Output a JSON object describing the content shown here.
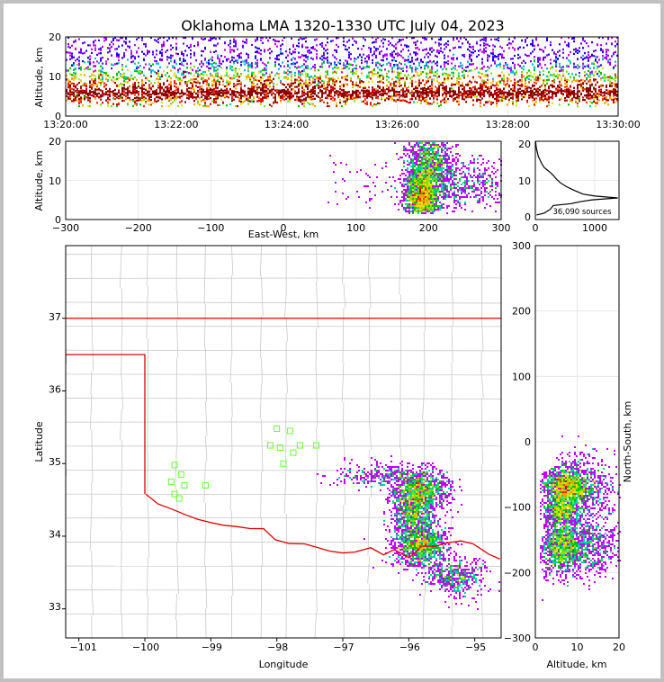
{
  "title": "Oklahoma LMA 1320-1330 UTC July 04, 2023",
  "chart_data": [
    {
      "type": "heatmap",
      "name": "time-altitude",
      "ylabel": "Altitude, km",
      "xlabel": "",
      "x_ticks": [
        "13:20:00",
        "13:22:00",
        "13:24:00",
        "13:26:00",
        "13:28:00",
        "13:30:00"
      ],
      "y_ticks": [
        "0",
        "10",
        "20"
      ],
      "xlim": [
        "13:20:00",
        "13:30:00"
      ],
      "ylim": [
        0,
        20
      ],
      "grid": true
    },
    {
      "type": "heatmap",
      "name": "east-west-altitude",
      "xlabel": "East-West, km",
      "ylabel": "Altitude, km",
      "x_ticks": [
        "−300",
        "−200",
        "−100",
        "0",
        "100",
        "200",
        "300"
      ],
      "y_ticks": [
        "0",
        "10",
        "20"
      ],
      "xlim": [
        -300,
        300
      ],
      "ylim": [
        0,
        20
      ],
      "grid": true,
      "cores": [
        {
          "x": 190,
          "z": 6,
          "sx": 12,
          "sz": 3.5,
          "n": 1700
        },
        {
          "x": 200,
          "z": 15,
          "sx": 16,
          "sz": 3.5,
          "n": 900
        },
        {
          "x": 245,
          "z": 9,
          "sx": 35,
          "sz": 3,
          "n": 500
        }
      ]
    },
    {
      "type": "line",
      "name": "altitude-histogram",
      "x_ticks": [
        "0",
        "1000"
      ],
      "y_ticks": [
        "0",
        "10",
        "20"
      ],
      "xlim": [
        0,
        1400
      ],
      "ylim": [
        0,
        20
      ],
      "annotation": "36,090 sources",
      "profile": [
        [
          0.5,
          20
        ],
        [
          1,
          150
        ],
        [
          2,
          250
        ],
        [
          3,
          300
        ],
        [
          3.5,
          600
        ],
        [
          4,
          750
        ],
        [
          4.5,
          950
        ],
        [
          5,
          1380
        ],
        [
          5.5,
          1000
        ],
        [
          6,
          800
        ],
        [
          7,
          650
        ],
        [
          8,
          520
        ],
        [
          9,
          420
        ],
        [
          10,
          350
        ],
        [
          11,
          300
        ],
        [
          12,
          230
        ],
        [
          13,
          150
        ],
        [
          14,
          110
        ],
        [
          15,
          80
        ],
        [
          16,
          50
        ],
        [
          17,
          35
        ],
        [
          18,
          20
        ],
        [
          19,
          10
        ],
        [
          20,
          5
        ]
      ]
    },
    {
      "type": "heatmap",
      "name": "plan-view",
      "xlabel": "Longitude",
      "ylabel": "Latitude",
      "x_ticks": [
        "−101",
        "−100",
        "−99",
        "−98",
        "−97",
        "−96",
        "−95"
      ],
      "y_ticks": [
        "33",
        "34",
        "35",
        "36",
        "37"
      ],
      "xlim": [
        -101.2,
        -94.6
      ],
      "ylim": [
        32.6,
        38
      ],
      "stations": [
        [
          -99.55,
          34.98
        ],
        [
          -99.45,
          34.85
        ],
        [
          -99.6,
          34.75
        ],
        [
          -99.4,
          34.7
        ],
        [
          -99.55,
          34.58
        ],
        [
          -99.48,
          34.52
        ],
        [
          -99.08,
          34.7
        ],
        [
          -98.0,
          35.48
        ],
        [
          -97.8,
          35.45
        ],
        [
          -98.1,
          35.25
        ],
        [
          -97.95,
          35.22
        ],
        [
          -97.75,
          35.15
        ],
        [
          -97.65,
          35.25
        ],
        [
          -97.4,
          35.25
        ],
        [
          -97.9,
          35.0
        ]
      ],
      "cores": [
        {
          "lon": -95.85,
          "lat": 34.65,
          "sx": 0.2,
          "sy": 0.14,
          "n": 1100
        },
        {
          "lon": -95.95,
          "lat": 34.35,
          "sx": 0.15,
          "sy": 0.12,
          "n": 600
        },
        {
          "lon": -95.85,
          "lat": 33.9,
          "sx": 0.2,
          "sy": 0.15,
          "n": 1200
        },
        {
          "lon": -95.3,
          "lat": 33.45,
          "sx": 0.22,
          "sy": 0.12,
          "n": 500
        },
        {
          "lon": -96.5,
          "lat": 34.85,
          "sx": 0.3,
          "sy": 0.08,
          "n": 250
        }
      ]
    },
    {
      "type": "heatmap",
      "name": "altitude-north-south",
      "xlabel": "Altitude, km",
      "ylabel": "North-South, km",
      "x_ticks": [
        "0",
        "10",
        "20"
      ],
      "y_ticks": [
        "−300",
        "−200",
        "−100",
        "0",
        "100",
        "200",
        "300"
      ],
      "xlim": [
        0,
        20
      ],
      "ylim": [
        -300,
        300
      ],
      "grid": true,
      "cores": [
        {
          "z": 7,
          "y": -68,
          "sz": 2.5,
          "sy": 15,
          "n": 1200
        },
        {
          "z": 11,
          "y": -70,
          "sz": 4,
          "sy": 25,
          "n": 700
        },
        {
          "z": 6,
          "y": -160,
          "sz": 2.5,
          "sy": 20,
          "n": 1000
        },
        {
          "z": 12,
          "y": -155,
          "sz": 4,
          "sy": 25,
          "n": 700
        },
        {
          "z": 6,
          "y": -105,
          "sz": 2,
          "sy": 10,
          "n": 500
        }
      ]
    }
  ]
}
